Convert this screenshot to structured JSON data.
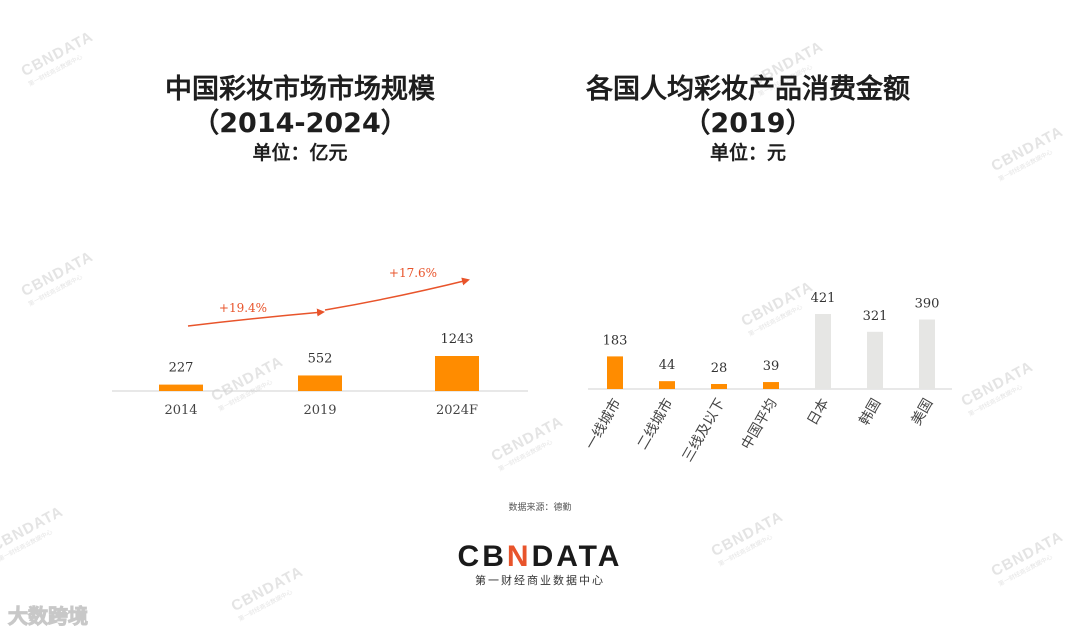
{
  "left_chart": {
    "title_line1": "中国彩妆市场市场规模",
    "title_line2": "（2014-2024）",
    "unit": "单位：亿元"
  },
  "right_chart": {
    "title_line1": "各国人均彩妆产品消费金额",
    "title_line2": "（2019）",
    "unit": "单位：元"
  },
  "chart_data": [
    {
      "type": "bar",
      "title": "中国彩妆市场市场规模（2014-2024）",
      "unit": "亿元",
      "categories": [
        "2014",
        "2019",
        "2024F"
      ],
      "values": [
        227,
        552,
        1243
      ],
      "value_labels": [
        "227",
        "552",
        "1243"
      ],
      "annotations": [
        "+19.4%",
        "+17.6%"
      ],
      "bar_color": "#ff8c00",
      "arrow_color": "#e8542b"
    },
    {
      "type": "bar",
      "title": "各国人均彩妆产品消费金额（2019）",
      "unit": "元",
      "categories": [
        "一线城市",
        "二线城市",
        "三线及以下",
        "中国平均",
        "日本",
        "韩国",
        "美国"
      ],
      "values": [
        183,
        44,
        28,
        39,
        421,
        321,
        390
      ],
      "value_labels": [
        "183",
        "44",
        "28",
        "39",
        "421",
        "321",
        "390"
      ],
      "colors": [
        "#ff8c00",
        "#ff8c00",
        "#ff8c00",
        "#ff8c00",
        "#e6e6e4",
        "#e6e6e4",
        "#e6e6e4"
      ]
    }
  ],
  "source": "数据来源：德勤",
  "footer": {
    "brand_prefix": "CB",
    "brand_accent": "N",
    "brand_suffix": "DATA",
    "tagline": "第一财经商业数据中心"
  },
  "watermark": {
    "text": "CBNDATA",
    "subtext": "第一财经商业数据中心"
  },
  "corner_logo": "大数跨境"
}
